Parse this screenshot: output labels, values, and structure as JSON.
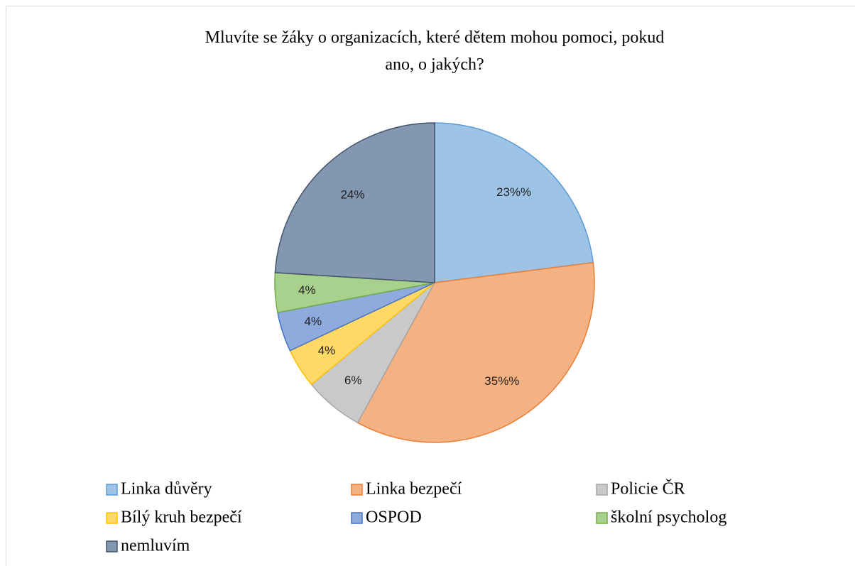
{
  "chart_data": {
    "type": "pie",
    "title": "Mluvíte se žáky o organizacích, které dětem mohou pomoci, pokud ano, o jakých?",
    "categories": [
      "Linka důvěry",
      "Linka bezpečí",
      "Policie ČR",
      "Bílý kruh bezpečí",
      "OSPOD",
      "školní psycholog",
      "nemluvím"
    ],
    "values": [
      23,
      35,
      6,
      4,
      4,
      4,
      24
    ],
    "value_labels": [
      "23%%",
      "35%%",
      "6%",
      "4%",
      "4%",
      "4%",
      "24%"
    ],
    "colors": [
      "#9dc3e6",
      "#f4b183",
      "#c9c9c9",
      "#ffd966",
      "#8faadc",
      "#a9d18e",
      "#8497b0"
    ],
    "stroke_colors": [
      "#5b9bd5",
      "#ed7d31",
      "#a5a5a5",
      "#ffc000",
      "#4472c4",
      "#70ad47",
      "#44546a"
    ],
    "legend": "bottom"
  }
}
